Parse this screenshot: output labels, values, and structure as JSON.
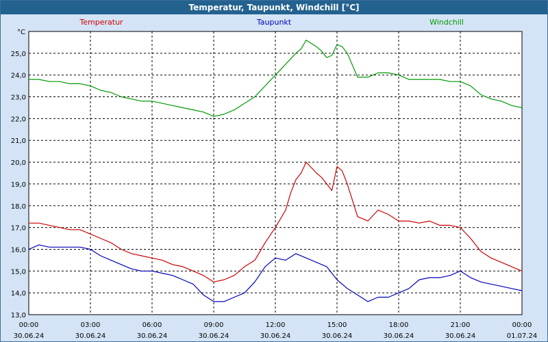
{
  "title": "Temperatur, Taupunkt, Windchill [°C]",
  "chart_data": {
    "type": "line",
    "title": "Temperatur, Taupunkt, Windchill [°C]",
    "ylabel": "°C",
    "ylim": [
      13.0,
      26.0
    ],
    "xlim_hours": [
      0,
      24
    ],
    "y_ticks": [
      "13,0",
      "14,0",
      "15,0",
      "16,0",
      "17,0",
      "18,0",
      "19,0",
      "20,0",
      "21,0",
      "22,0",
      "23,0",
      "24,0",
      "25,0"
    ],
    "x_ticks": [
      {
        "time": "00:00",
        "date": "30.06.24"
      },
      {
        "time": "03:00",
        "date": "30.06.24"
      },
      {
        "time": "06:00",
        "date": "30.06.24"
      },
      {
        "time": "09:00",
        "date": "30.06.24"
      },
      {
        "time": "12:00",
        "date": "30.06.24"
      },
      {
        "time": "15:00",
        "date": "30.06.24"
      },
      {
        "time": "18:00",
        "date": "30.06.24"
      },
      {
        "time": "21:00",
        "date": "30.06.24"
      },
      {
        "time": "00:00",
        "date": "01.07.24"
      }
    ],
    "legend": [
      "Temperatur",
      "Taupunkt",
      "Windchill"
    ],
    "grid": true,
    "series": [
      {
        "name": "Temperatur",
        "color": "#cc0000",
        "x": [
          0,
          0.5,
          1,
          1.5,
          2,
          2.5,
          3,
          3.5,
          4,
          4.5,
          5,
          5.5,
          6,
          6.5,
          7,
          7.5,
          8,
          8.5,
          9,
          9.5,
          10,
          10.5,
          11,
          11.5,
          12,
          12.5,
          12.75,
          13,
          13.25,
          13.5,
          14,
          14.25,
          14.5,
          14.75,
          15,
          15.25,
          15.5,
          16,
          16.5,
          17,
          17.5,
          18,
          18.5,
          19,
          19.5,
          20,
          20.5,
          21,
          21.5,
          22,
          22.5,
          23,
          23.5,
          24
        ],
        "values": [
          17.2,
          17.2,
          17.1,
          17.0,
          16.9,
          16.9,
          16.7,
          16.5,
          16.3,
          16.0,
          15.8,
          15.7,
          15.6,
          15.5,
          15.3,
          15.2,
          15.0,
          14.8,
          14.5,
          14.6,
          14.8,
          15.2,
          15.5,
          16.3,
          17.0,
          17.8,
          18.6,
          19.2,
          19.5,
          20.0,
          19.5,
          19.3,
          19.0,
          18.7,
          19.8,
          19.6,
          19.0,
          17.5,
          17.3,
          17.8,
          17.6,
          17.3,
          17.3,
          17.2,
          17.3,
          17.1,
          17.1,
          17.0,
          16.5,
          15.9,
          15.6,
          15.4,
          15.2,
          15.0
        ]
      },
      {
        "name": "Taupunkt",
        "color": "#0000bb",
        "x": [
          0,
          0.5,
          1,
          1.5,
          2,
          2.5,
          3,
          3.5,
          4,
          4.5,
          5,
          5.5,
          6,
          6.5,
          7,
          7.5,
          8,
          8.5,
          9,
          9.5,
          10,
          10.5,
          11,
          11.5,
          12,
          12.5,
          13,
          13.5,
          14,
          14.5,
          15,
          15.5,
          16,
          16.5,
          17,
          17.5,
          18,
          18.5,
          19,
          19.5,
          20,
          20.5,
          21,
          21.5,
          22,
          22.5,
          23,
          23.5,
          24
        ],
        "values": [
          16.0,
          16.2,
          16.1,
          16.1,
          16.1,
          16.1,
          16.0,
          15.7,
          15.5,
          15.3,
          15.1,
          15.0,
          15.0,
          14.9,
          14.8,
          14.6,
          14.4,
          13.9,
          13.6,
          13.6,
          13.8,
          14.0,
          14.5,
          15.2,
          15.6,
          15.5,
          15.8,
          15.6,
          15.4,
          15.2,
          14.6,
          14.2,
          13.9,
          13.6,
          13.8,
          13.8,
          14.0,
          14.2,
          14.6,
          14.7,
          14.7,
          14.8,
          15.0,
          14.7,
          14.5,
          14.4,
          14.3,
          14.2,
          14.1
        ]
      },
      {
        "name": "Windchill",
        "color": "#009900",
        "x": [
          0,
          0.5,
          1,
          1.5,
          2,
          2.5,
          3,
          3.5,
          4,
          4.5,
          5,
          5.5,
          6,
          6.5,
          7,
          7.5,
          8,
          8.5,
          9,
          9.5,
          10,
          10.5,
          11,
          11.5,
          12,
          12.5,
          13,
          13.25,
          13.5,
          14,
          14.25,
          14.5,
          14.75,
          15,
          15.25,
          15.5,
          16,
          16.5,
          17,
          17.5,
          18,
          18.5,
          19,
          19.5,
          20,
          20.5,
          21,
          21.5,
          22,
          22.5,
          23,
          23.5,
          24
        ],
        "values": [
          23.8,
          23.8,
          23.7,
          23.7,
          23.6,
          23.6,
          23.5,
          23.3,
          23.2,
          23.0,
          22.9,
          22.8,
          22.8,
          22.7,
          22.6,
          22.5,
          22.4,
          22.3,
          22.1,
          22.2,
          22.4,
          22.7,
          23.0,
          23.5,
          24.0,
          24.5,
          25.0,
          25.2,
          25.6,
          25.3,
          25.1,
          24.8,
          24.9,
          25.4,
          25.3,
          25.0,
          23.9,
          23.9,
          24.1,
          24.1,
          24.0,
          23.8,
          23.8,
          23.8,
          23.8,
          23.7,
          23.7,
          23.5,
          23.1,
          22.9,
          22.8,
          22.6,
          22.5
        ]
      }
    ]
  }
}
